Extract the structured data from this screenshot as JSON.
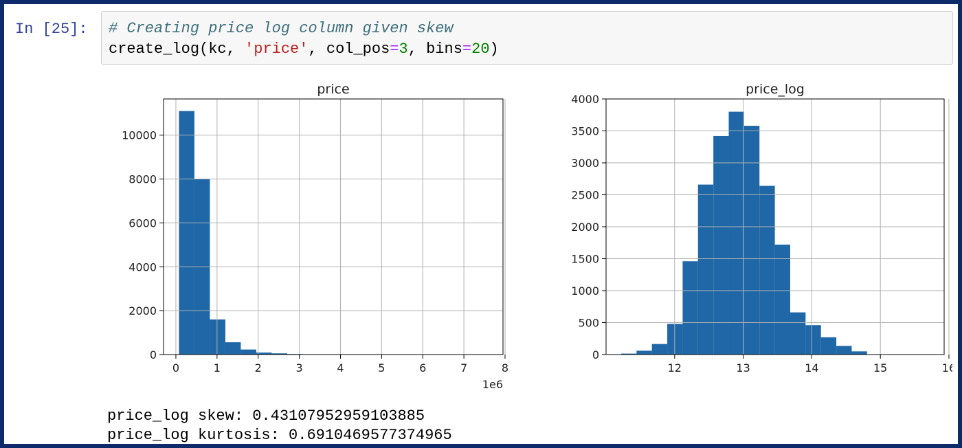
{
  "cell": {
    "prompt": "In [25]:",
    "code_comment": "# Creating price log column given skew",
    "code": {
      "fn": "create_log(kc, ",
      "arg_str": "'price'",
      "sep1": ", col_pos",
      "eq1": "=",
      "num1": "3",
      "sep2": ", bins",
      "eq2": "=",
      "num2": "20",
      "end": ")"
    }
  },
  "chart_data": [
    {
      "type": "bar",
      "title": "price",
      "xlabel": "",
      "ylabel": "",
      "x_offset_label": "1e6",
      "bin_edges": [
        0.075,
        0.4507,
        0.8264,
        1.2021,
        1.5778,
        1.9535,
        2.3292,
        2.7049,
        3.0806,
        3.4563,
        3.832,
        4.2077,
        4.5834,
        4.9591,
        5.3348,
        5.7105,
        6.0862,
        6.4619,
        6.8376,
        7.2133,
        7.589
      ],
      "values": [
        11100,
        8000,
        1600,
        560,
        230,
        90,
        55,
        25,
        10,
        8,
        6,
        4,
        3,
        2,
        2,
        1,
        1,
        1,
        0,
        1
      ],
      "xlim": [
        -0.3,
        7.95
      ],
      "ylim": [
        0,
        11650
      ],
      "xticks": [
        0,
        1,
        2,
        3,
        4,
        5,
        6,
        7,
        8
      ],
      "xtick_labels": [
        "0",
        "1",
        "2",
        "3",
        "4",
        "5",
        "6",
        "7",
        "8"
      ],
      "yticks": [
        0,
        2000,
        4000,
        6000,
        8000,
        10000
      ],
      "ytick_labels": [
        "0",
        "2000",
        "4000",
        "6000",
        "8000",
        "10000"
      ],
      "grid": true,
      "color": "#1f67a6"
    },
    {
      "type": "bar",
      "title": "price_log",
      "xlabel": "",
      "ylabel": "",
      "bin_edges": [
        11.22,
        11.4441,
        11.6683,
        11.8924,
        12.1165,
        12.3406,
        12.5648,
        12.7889,
        13.013,
        13.2371,
        13.4613,
        13.6854,
        13.9095,
        14.1336,
        14.3578,
        14.5819,
        14.806,
        15.0301,
        15.2543,
        15.4784,
        15.7025
      ],
      "values": [
        15,
        60,
        165,
        480,
        1460,
        2660,
        3420,
        3800,
        3580,
        2640,
        1720,
        660,
        460,
        270,
        135,
        50,
        5,
        3,
        2,
        1
      ],
      "xlim": [
        11.0,
        15.93
      ],
      "ylim": [
        0,
        4000
      ],
      "xticks": [
        12,
        13,
        14,
        15,
        16
      ],
      "xtick_labels": [
        "12",
        "13",
        "14",
        "15",
        "16"
      ],
      "yticks": [
        0,
        500,
        1000,
        1500,
        2000,
        2500,
        3000,
        3500,
        4000
      ],
      "ytick_labels": [
        "0",
        "500",
        "1000",
        "1500",
        "2000",
        "2500",
        "3000",
        "3500",
        "4000"
      ],
      "grid": true,
      "color": "#1f67a6"
    }
  ],
  "output": {
    "skew_line": "price_log skew: 0.43107952959103885",
    "kurtosis_line": "price_log kurtosis: 0.6910469577374965"
  }
}
